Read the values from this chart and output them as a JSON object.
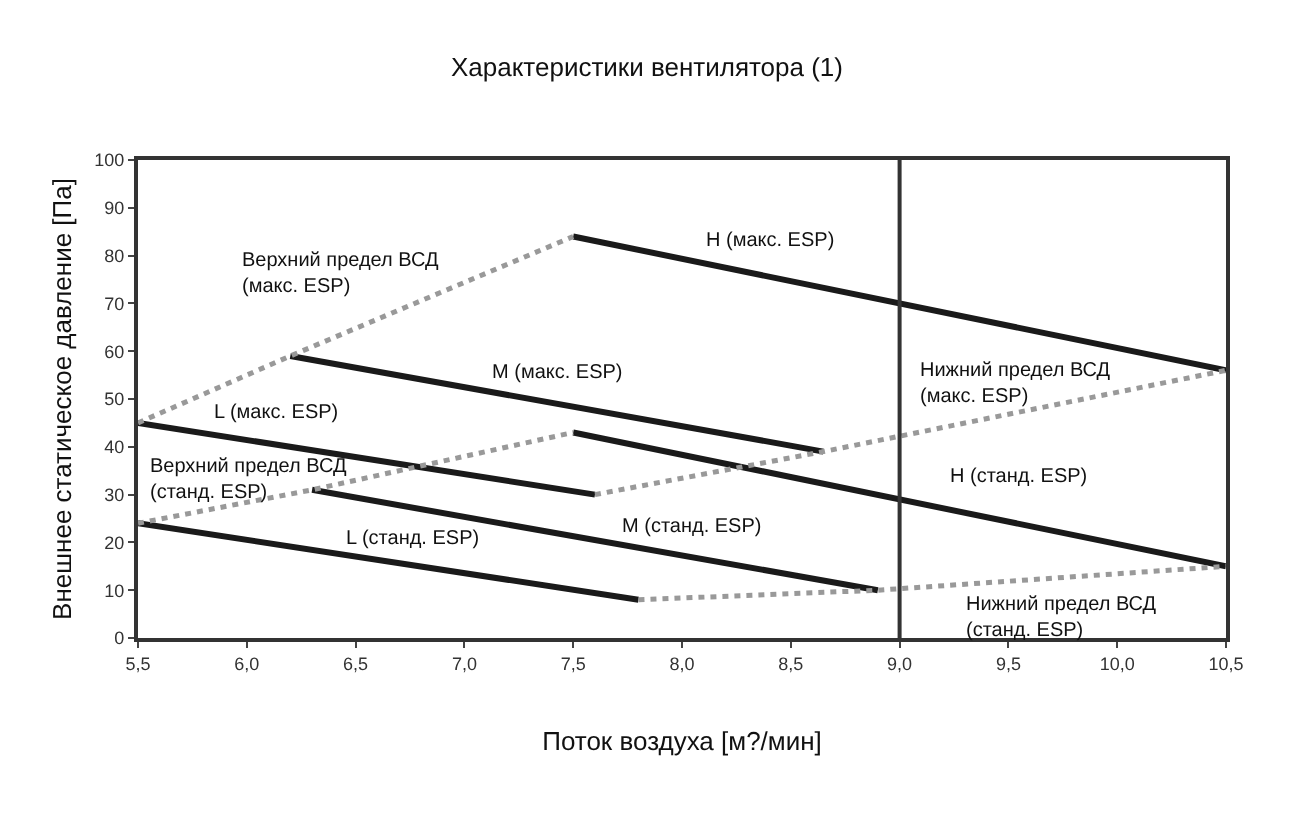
{
  "chart_data": {
    "type": "line",
    "title": "Характеристики вентилятора (1)",
    "xlabel": "Поток воздуха [м?/мин]",
    "ylabel": "Внешнее статическое давление [Па]",
    "xlim": [
      5.5,
      10.5
    ],
    "ylim": [
      0,
      100
    ],
    "xticks": [
      {
        "value": 5.5,
        "label": "5,5"
      },
      {
        "value": 6.0,
        "label": "6,0"
      },
      {
        "value": 6.5,
        "label": "6,5"
      },
      {
        "value": 7.0,
        "label": "7,0"
      },
      {
        "value": 7.5,
        "label": "7,5"
      },
      {
        "value": 8.0,
        "label": "8,0"
      },
      {
        "value": 8.5,
        "label": "8,5"
      },
      {
        "value": 9.0,
        "label": "9,0"
      },
      {
        "value": 9.5,
        "label": "9,5"
      },
      {
        "value": 10.0,
        "label": "10,0"
      },
      {
        "value": 10.5,
        "label": "10,5"
      }
    ],
    "yticks": [
      0,
      10,
      20,
      30,
      40,
      50,
      60,
      70,
      80,
      90,
      100
    ],
    "legend": false,
    "marker": "none",
    "ref_lines": [
      {
        "axis": "x",
        "value": 9.0,
        "color": "#333333",
        "line_style": "solid"
      }
    ],
    "series": [
      {
        "name": "H (макс. ESP)",
        "color": "#1a1a1a",
        "line_style": "solid",
        "x": [
          7.5,
          10.5
        ],
        "values": [
          84,
          56
        ]
      },
      {
        "name": "M (макс. ESP)",
        "color": "#1a1a1a",
        "line_style": "solid",
        "x": [
          6.2,
          8.65
        ],
        "values": [
          59,
          39
        ]
      },
      {
        "name": "L (макс. ESP)",
        "color": "#1a1a1a",
        "line_style": "solid",
        "x": [
          5.5,
          7.6
        ],
        "values": [
          45,
          30
        ]
      },
      {
        "name": "H (станд. ESP)",
        "color": "#1a1a1a",
        "line_style": "solid",
        "x": [
          7.5,
          10.5
        ],
        "values": [
          43,
          15
        ]
      },
      {
        "name": "M (станд. ESP)",
        "color": "#1a1a1a",
        "line_style": "solid",
        "x": [
          6.3,
          8.9
        ],
        "values": [
          31,
          10
        ]
      },
      {
        "name": "L (станд. ESP)",
        "color": "#1a1a1a",
        "line_style": "solid",
        "x": [
          5.5,
          7.8
        ],
        "values": [
          24,
          8
        ]
      },
      {
        "name": "Верхний предел ВСД (макс. ESP)",
        "color": "#999999",
        "line_style": "dotted",
        "x": [
          5.5,
          6.2,
          7.5
        ],
        "values": [
          45,
          59,
          84
        ]
      },
      {
        "name": "Нижний предел ВСД (макс. ESP)",
        "color": "#999999",
        "line_style": "dotted",
        "x": [
          7.6,
          8.65,
          10.5
        ],
        "values": [
          30,
          39,
          56
        ]
      },
      {
        "name": "Верхний предел ВСД (станд. ESP)",
        "color": "#999999",
        "line_style": "dotted",
        "x": [
          5.5,
          6.3,
          7.5
        ],
        "values": [
          24,
          31,
          43
        ]
      },
      {
        "name": "Нижний предел ВСД (станд. ESP)",
        "color": "#999999",
        "line_style": "dotted",
        "x": [
          7.8,
          8.9,
          10.5
        ],
        "values": [
          8,
          10,
          15
        ]
      }
    ]
  }
}
